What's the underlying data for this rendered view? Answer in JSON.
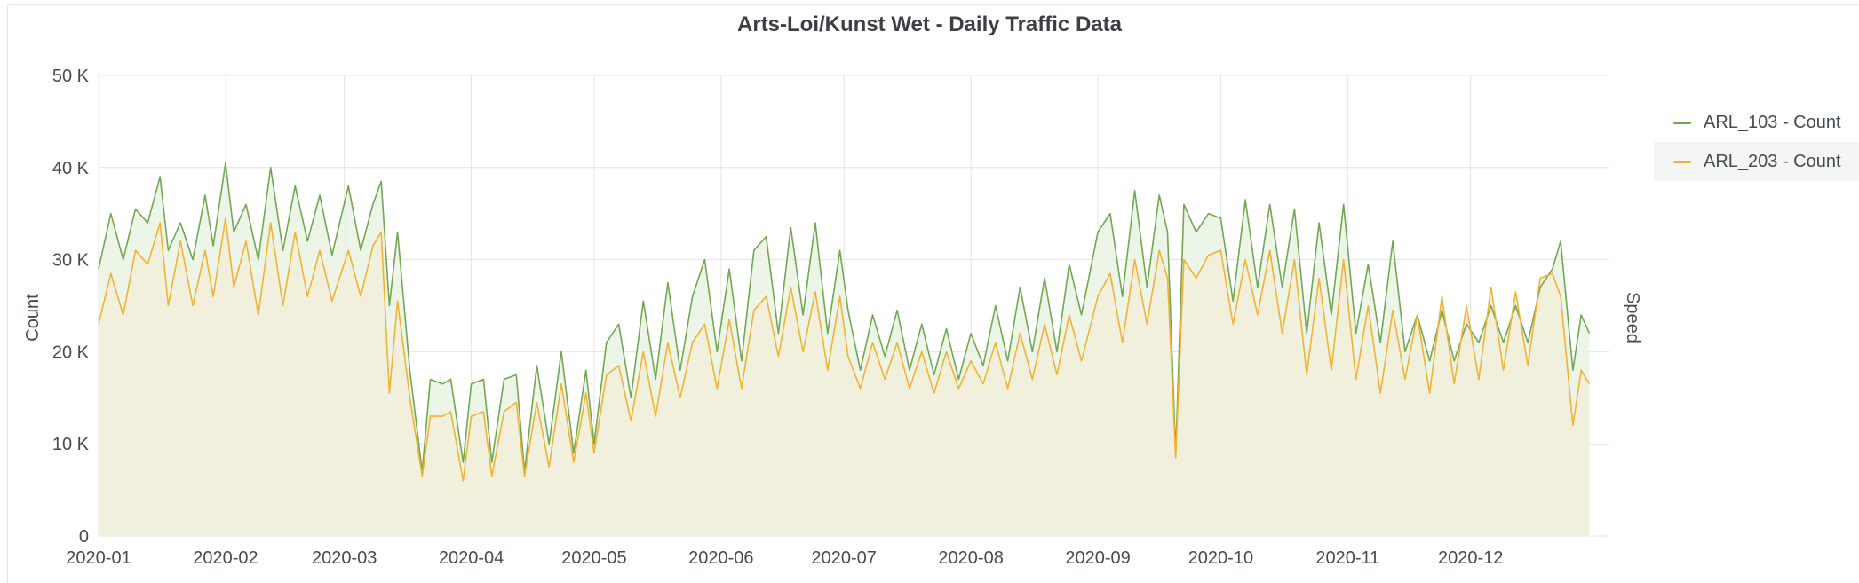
{
  "panel": {
    "title": "Arts-Loi/Kunst Wet - Daily Traffic Data"
  },
  "legend": {
    "items": [
      {
        "label": "ARL_103 - Count",
        "color": "#73a752"
      },
      {
        "label": "ARL_203 - Count",
        "color": "#f0b434"
      }
    ]
  },
  "chart_data": {
    "type": "area",
    "title": "Arts-Loi/Kunst Wet - Daily Traffic Data",
    "ylabel": "Count",
    "y2label": "Speed",
    "ylim": [
      0,
      50000
    ],
    "xlim": [
      "2020-01-01",
      "2020-12-31"
    ],
    "y_ticks": [
      {
        "value": 0,
        "label": "0"
      },
      {
        "value": 10000,
        "label": "10 K"
      },
      {
        "value": 20000,
        "label": "20 K"
      },
      {
        "value": 30000,
        "label": "30 K"
      },
      {
        "value": 40000,
        "label": "40 K"
      },
      {
        "value": 50000,
        "label": "50 K"
      }
    ],
    "x_ticks": [
      {
        "date": "2020-01-01",
        "label": "2020-01"
      },
      {
        "date": "2020-02-01",
        "label": "2020-02"
      },
      {
        "date": "2020-03-01",
        "label": "2020-03"
      },
      {
        "date": "2020-04-01",
        "label": "2020-04"
      },
      {
        "date": "2020-05-01",
        "label": "2020-05"
      },
      {
        "date": "2020-06-01",
        "label": "2020-06"
      },
      {
        "date": "2020-07-01",
        "label": "2020-07"
      },
      {
        "date": "2020-08-01",
        "label": "2020-08"
      },
      {
        "date": "2020-09-01",
        "label": "2020-09"
      },
      {
        "date": "2020-10-01",
        "label": "2020-10"
      },
      {
        "date": "2020-11-01",
        "label": "2020-11"
      },
      {
        "date": "2020-12-01",
        "label": "2020-12"
      }
    ],
    "grid": true,
    "legend_position": "right",
    "series": [
      {
        "name": "ARL_103 - Count",
        "color": "#73a752",
        "fill": "#e9f3e3",
        "points": [
          [
            "2020-01-01",
            29000
          ],
          [
            "2020-01-04",
            35000
          ],
          [
            "2020-01-07",
            30000
          ],
          [
            "2020-01-10",
            35500
          ],
          [
            "2020-01-13",
            34000
          ],
          [
            "2020-01-16",
            39000
          ],
          [
            "2020-01-18",
            31000
          ],
          [
            "2020-01-21",
            34000
          ],
          [
            "2020-01-24",
            30000
          ],
          [
            "2020-01-27",
            37000
          ],
          [
            "2020-01-29",
            31500
          ],
          [
            "2020-02-01",
            40500
          ],
          [
            "2020-02-03",
            33000
          ],
          [
            "2020-02-06",
            36000
          ],
          [
            "2020-02-09",
            30000
          ],
          [
            "2020-02-12",
            40000
          ],
          [
            "2020-02-15",
            31000
          ],
          [
            "2020-02-18",
            38000
          ],
          [
            "2020-02-21",
            32000
          ],
          [
            "2020-02-24",
            37000
          ],
          [
            "2020-02-27",
            30500
          ],
          [
            "2020-03-02",
            38000
          ],
          [
            "2020-03-05",
            31000
          ],
          [
            "2020-03-08",
            36000
          ],
          [
            "2020-03-10",
            38500
          ],
          [
            "2020-03-12",
            25000
          ],
          [
            "2020-03-14",
            33000
          ],
          [
            "2020-03-17",
            18000
          ],
          [
            "2020-03-20",
            7000
          ],
          [
            "2020-03-22",
            17000
          ],
          [
            "2020-03-25",
            16500
          ],
          [
            "2020-03-27",
            17000
          ],
          [
            "2020-03-30",
            8000
          ],
          [
            "2020-04-01",
            16500
          ],
          [
            "2020-04-04",
            17000
          ],
          [
            "2020-04-06",
            8000
          ],
          [
            "2020-04-09",
            17000
          ],
          [
            "2020-04-12",
            17500
          ],
          [
            "2020-04-14",
            7000
          ],
          [
            "2020-04-17",
            18500
          ],
          [
            "2020-04-20",
            10000
          ],
          [
            "2020-04-23",
            20000
          ],
          [
            "2020-04-26",
            9000
          ],
          [
            "2020-04-29",
            18000
          ],
          [
            "2020-05-01",
            10000
          ],
          [
            "2020-05-04",
            21000
          ],
          [
            "2020-05-07",
            23000
          ],
          [
            "2020-05-10",
            15000
          ],
          [
            "2020-05-13",
            25500
          ],
          [
            "2020-05-16",
            17000
          ],
          [
            "2020-05-19",
            27500
          ],
          [
            "2020-05-22",
            18000
          ],
          [
            "2020-05-25",
            26000
          ],
          [
            "2020-05-28",
            30000
          ],
          [
            "2020-05-31",
            20000
          ],
          [
            "2020-06-03",
            29000
          ],
          [
            "2020-06-06",
            19000
          ],
          [
            "2020-06-09",
            31000
          ],
          [
            "2020-06-12",
            32500
          ],
          [
            "2020-06-15",
            22000
          ],
          [
            "2020-06-18",
            33500
          ],
          [
            "2020-06-21",
            24000
          ],
          [
            "2020-06-24",
            34000
          ],
          [
            "2020-06-27",
            22000
          ],
          [
            "2020-06-30",
            31000
          ],
          [
            "2020-07-02",
            24500
          ],
          [
            "2020-07-05",
            18000
          ],
          [
            "2020-07-08",
            24000
          ],
          [
            "2020-07-11",
            19500
          ],
          [
            "2020-07-14",
            24500
          ],
          [
            "2020-07-17",
            18000
          ],
          [
            "2020-07-20",
            23000
          ],
          [
            "2020-07-23",
            17500
          ],
          [
            "2020-07-26",
            22500
          ],
          [
            "2020-07-29",
            17000
          ],
          [
            "2020-08-01",
            22000
          ],
          [
            "2020-08-04",
            18500
          ],
          [
            "2020-08-07",
            25000
          ],
          [
            "2020-08-10",
            19000
          ],
          [
            "2020-08-13",
            27000
          ],
          [
            "2020-08-16",
            20000
          ],
          [
            "2020-08-19",
            28000
          ],
          [
            "2020-08-22",
            20000
          ],
          [
            "2020-08-25",
            29500
          ],
          [
            "2020-08-28",
            24000
          ],
          [
            "2020-09-01",
            33000
          ],
          [
            "2020-09-04",
            35000
          ],
          [
            "2020-09-07",
            26000
          ],
          [
            "2020-09-10",
            37500
          ],
          [
            "2020-09-13",
            27000
          ],
          [
            "2020-09-16",
            37000
          ],
          [
            "2020-09-18",
            33000
          ],
          [
            "2020-09-20",
            9000
          ],
          [
            "2020-09-22",
            36000
          ],
          [
            "2020-09-25",
            33000
          ],
          [
            "2020-09-28",
            35000
          ],
          [
            "2020-10-01",
            34500
          ],
          [
            "2020-10-04",
            25500
          ],
          [
            "2020-10-07",
            36500
          ],
          [
            "2020-10-10",
            27000
          ],
          [
            "2020-10-13",
            36000
          ],
          [
            "2020-10-16",
            27000
          ],
          [
            "2020-10-19",
            35500
          ],
          [
            "2020-10-22",
            22000
          ],
          [
            "2020-10-25",
            34000
          ],
          [
            "2020-10-28",
            24000
          ],
          [
            "2020-10-31",
            36000
          ],
          [
            "2020-11-03",
            22000
          ],
          [
            "2020-11-06",
            29500
          ],
          [
            "2020-11-09",
            21000
          ],
          [
            "2020-11-12",
            32000
          ],
          [
            "2020-11-15",
            20000
          ],
          [
            "2020-11-18",
            24000
          ],
          [
            "2020-11-21",
            19000
          ],
          [
            "2020-11-24",
            24500
          ],
          [
            "2020-11-27",
            19000
          ],
          [
            "2020-11-30",
            23000
          ],
          [
            "2020-12-03",
            21000
          ],
          [
            "2020-12-06",
            25000
          ],
          [
            "2020-12-09",
            21000
          ],
          [
            "2020-12-12",
            25000
          ],
          [
            "2020-12-15",
            21000
          ],
          [
            "2020-12-18",
            27000
          ],
          [
            "2020-12-21",
            29000
          ],
          [
            "2020-12-23",
            32000
          ],
          [
            "2020-12-26",
            18000
          ],
          [
            "2020-12-28",
            24000
          ],
          [
            "2020-12-30",
            22000
          ]
        ]
      },
      {
        "name": "ARL_203 - Count",
        "color": "#f0b434",
        "fill": "#f1efda",
        "points": [
          [
            "2020-01-01",
            23000
          ],
          [
            "2020-01-04",
            28500
          ],
          [
            "2020-01-07",
            24000
          ],
          [
            "2020-01-10",
            31000
          ],
          [
            "2020-01-13",
            29500
          ],
          [
            "2020-01-16",
            34000
          ],
          [
            "2020-01-18",
            25000
          ],
          [
            "2020-01-21",
            32000
          ],
          [
            "2020-01-24",
            25000
          ],
          [
            "2020-01-27",
            31000
          ],
          [
            "2020-01-29",
            26000
          ],
          [
            "2020-02-01",
            34500
          ],
          [
            "2020-02-03",
            27000
          ],
          [
            "2020-02-06",
            32000
          ],
          [
            "2020-02-09",
            24000
          ],
          [
            "2020-02-12",
            34000
          ],
          [
            "2020-02-15",
            25000
          ],
          [
            "2020-02-18",
            33000
          ],
          [
            "2020-02-21",
            26000
          ],
          [
            "2020-02-24",
            31000
          ],
          [
            "2020-02-27",
            25500
          ],
          [
            "2020-03-02",
            31000
          ],
          [
            "2020-03-05",
            26000
          ],
          [
            "2020-03-08",
            31500
          ],
          [
            "2020-03-10",
            33000
          ],
          [
            "2020-03-12",
            15500
          ],
          [
            "2020-03-14",
            25500
          ],
          [
            "2020-03-17",
            15000
          ],
          [
            "2020-03-20",
            6500
          ],
          [
            "2020-03-22",
            13000
          ],
          [
            "2020-03-25",
            13000
          ],
          [
            "2020-03-27",
            13500
          ],
          [
            "2020-03-30",
            6000
          ],
          [
            "2020-04-01",
            13000
          ],
          [
            "2020-04-04",
            13500
          ],
          [
            "2020-04-06",
            6500
          ],
          [
            "2020-04-09",
            13500
          ],
          [
            "2020-04-12",
            14500
          ],
          [
            "2020-04-14",
            6500
          ],
          [
            "2020-04-17",
            14500
          ],
          [
            "2020-04-20",
            7500
          ],
          [
            "2020-04-23",
            16500
          ],
          [
            "2020-04-26",
            8000
          ],
          [
            "2020-04-29",
            15500
          ],
          [
            "2020-05-01",
            9000
          ],
          [
            "2020-05-04",
            17500
          ],
          [
            "2020-05-07",
            18500
          ],
          [
            "2020-05-10",
            12500
          ],
          [
            "2020-05-13",
            20000
          ],
          [
            "2020-05-16",
            13000
          ],
          [
            "2020-05-19",
            21000
          ],
          [
            "2020-05-22",
            15000
          ],
          [
            "2020-05-25",
            21000
          ],
          [
            "2020-05-28",
            23000
          ],
          [
            "2020-05-31",
            16000
          ],
          [
            "2020-06-03",
            23500
          ],
          [
            "2020-06-06",
            16000
          ],
          [
            "2020-06-09",
            24500
          ],
          [
            "2020-06-12",
            26000
          ],
          [
            "2020-06-15",
            19500
          ],
          [
            "2020-06-18",
            27000
          ],
          [
            "2020-06-21",
            20000
          ],
          [
            "2020-06-24",
            26500
          ],
          [
            "2020-06-27",
            18000
          ],
          [
            "2020-06-30",
            26000
          ],
          [
            "2020-07-02",
            19500
          ],
          [
            "2020-07-05",
            16000
          ],
          [
            "2020-07-08",
            21000
          ],
          [
            "2020-07-11",
            17000
          ],
          [
            "2020-07-14",
            21000
          ],
          [
            "2020-07-17",
            16000
          ],
          [
            "2020-07-20",
            20000
          ],
          [
            "2020-07-23",
            15500
          ],
          [
            "2020-07-26",
            20000
          ],
          [
            "2020-07-29",
            16000
          ],
          [
            "2020-08-01",
            19000
          ],
          [
            "2020-08-04",
            16500
          ],
          [
            "2020-08-07",
            21000
          ],
          [
            "2020-08-10",
            16000
          ],
          [
            "2020-08-13",
            22000
          ],
          [
            "2020-08-16",
            17000
          ],
          [
            "2020-08-19",
            23000
          ],
          [
            "2020-08-22",
            17500
          ],
          [
            "2020-08-25",
            24000
          ],
          [
            "2020-08-28",
            19000
          ],
          [
            "2020-09-01",
            26000
          ],
          [
            "2020-09-04",
            28500
          ],
          [
            "2020-09-07",
            21000
          ],
          [
            "2020-09-10",
            30000
          ],
          [
            "2020-09-13",
            23000
          ],
          [
            "2020-09-16",
            31000
          ],
          [
            "2020-09-18",
            28000
          ],
          [
            "2020-09-20",
            8500
          ],
          [
            "2020-09-22",
            30000
          ],
          [
            "2020-09-25",
            28000
          ],
          [
            "2020-09-28",
            30500
          ],
          [
            "2020-10-01",
            31000
          ],
          [
            "2020-10-04",
            23000
          ],
          [
            "2020-10-07",
            30000
          ],
          [
            "2020-10-10",
            24000
          ],
          [
            "2020-10-13",
            31000
          ],
          [
            "2020-10-16",
            22000
          ],
          [
            "2020-10-19",
            30000
          ],
          [
            "2020-10-22",
            17500
          ],
          [
            "2020-10-25",
            28000
          ],
          [
            "2020-10-28",
            18000
          ],
          [
            "2020-10-31",
            30000
          ],
          [
            "2020-11-03",
            17000
          ],
          [
            "2020-11-06",
            25000
          ],
          [
            "2020-11-09",
            15500
          ],
          [
            "2020-11-12",
            24500
          ],
          [
            "2020-11-15",
            17000
          ],
          [
            "2020-11-18",
            24000
          ],
          [
            "2020-11-21",
            15500
          ],
          [
            "2020-11-24",
            26000
          ],
          [
            "2020-11-27",
            16500
          ],
          [
            "2020-11-30",
            25000
          ],
          [
            "2020-12-03",
            17000
          ],
          [
            "2020-12-06",
            27000
          ],
          [
            "2020-12-09",
            18000
          ],
          [
            "2020-12-12",
            26500
          ],
          [
            "2020-12-15",
            18500
          ],
          [
            "2020-12-18",
            28000
          ],
          [
            "2020-12-21",
            28500
          ],
          [
            "2020-12-23",
            26000
          ],
          [
            "2020-12-26",
            12000
          ],
          [
            "2020-12-28",
            18000
          ],
          [
            "2020-12-30",
            16500
          ]
        ]
      }
    ]
  }
}
